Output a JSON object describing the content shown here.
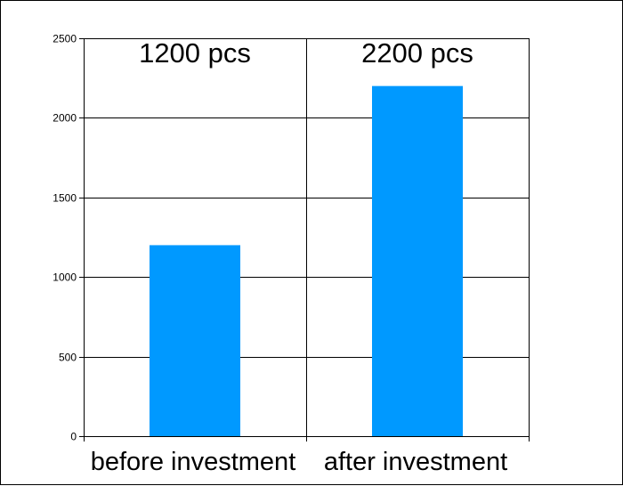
{
  "chart_data": {
    "type": "bar",
    "categories": [
      "before investment",
      "after investment"
    ],
    "values": [
      1200,
      2200
    ],
    "data_labels": [
      "1200 pcs",
      "2200 pcs"
    ],
    "ylim": [
      0,
      2500
    ],
    "yticks": [
      0,
      500,
      1000,
      1500,
      2000,
      2500
    ],
    "grid": true,
    "bar_color": "#0099ff",
    "gridline_color": "#000000"
  }
}
